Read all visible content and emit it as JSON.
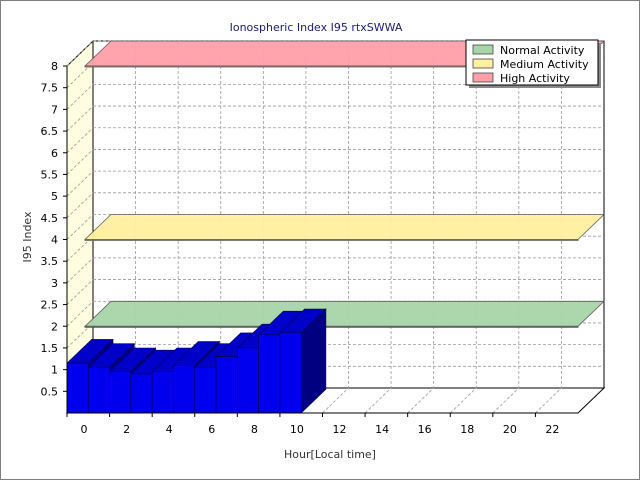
{
  "chart_data": {
    "type": "bar",
    "title": "Ionospheric Index I95 rtxSWWA",
    "xlabel": "Hour[Local time]",
    "ylabel": "I95 Index",
    "xlim": [
      0,
      24
    ],
    "ylim": [
      0,
      8
    ],
    "x_ticks": [
      "0",
      "2",
      "4",
      "6",
      "8",
      "10",
      "12",
      "14",
      "16",
      "18",
      "20",
      "22"
    ],
    "y_ticks": [
      "0.5",
      "1",
      "1.5",
      "2",
      "2.5",
      "3",
      "3.5",
      "4",
      "4.5",
      "5",
      "5.5",
      "6",
      "6.5",
      "7",
      "7.5",
      "8"
    ],
    "x": [
      0,
      1,
      2,
      3,
      4,
      5,
      6,
      7,
      8,
      9,
      10
    ],
    "values": [
      1.15,
      1.05,
      0.95,
      0.9,
      0.95,
      1.1,
      1.05,
      1.3,
      1.5,
      1.8,
      1.85
    ],
    "bar_color": "#0000ee",
    "grid": true,
    "legend_position": "top-right",
    "bands": [
      {
        "name": "Normal Activity",
        "value": 2.0,
        "color": "#a8d5a8"
      },
      {
        "name": "Medium Activity",
        "value": 4.0,
        "color": "#fff0a0"
      },
      {
        "name": "High Activity",
        "value": 8.0,
        "color": "#ffa0a8"
      }
    ]
  }
}
